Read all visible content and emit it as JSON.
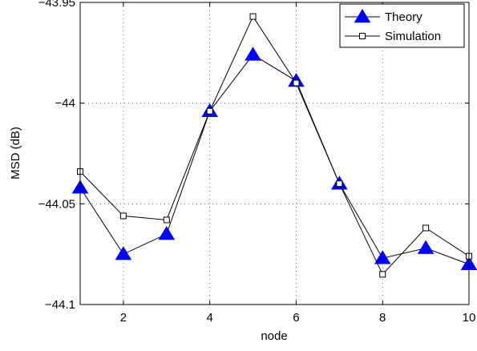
{
  "chart_data": {
    "type": "line",
    "title": "",
    "xlabel": "node",
    "ylabel": "MSD (dB)",
    "x": [
      1,
      2,
      3,
      4,
      5,
      6,
      7,
      8,
      9,
      10
    ],
    "xlim": [
      1,
      10
    ],
    "ylim": [
      -44.1,
      -43.95
    ],
    "xticks": [
      2,
      4,
      6,
      8,
      10
    ],
    "xtick_labels": [
      "2",
      "4",
      "6",
      "8",
      "10"
    ],
    "yticks": [
      -44.1,
      -44.05,
      -44,
      -43.95
    ],
    "ytick_labels": [
      "−44.1",
      "−44.05",
      "−44",
      "−43.95"
    ],
    "grid": true,
    "legend_position": "top-right",
    "series": [
      {
        "name": "Theory",
        "color": "#0000ff",
        "marker": "filled-triangle",
        "values": [
          -44.042,
          -44.075,
          -44.065,
          -44.004,
          -43.976,
          -43.989,
          -44.04,
          -44.077,
          -44.072,
          -44.08
        ]
      },
      {
        "name": "Simulation",
        "color": "#000000",
        "marker": "hollow-square",
        "values": [
          -44.034,
          -44.056,
          -44.058,
          -44.004,
          -43.957,
          -43.99,
          -44.04,
          -44.085,
          -44.062,
          -44.076
        ]
      }
    ]
  }
}
